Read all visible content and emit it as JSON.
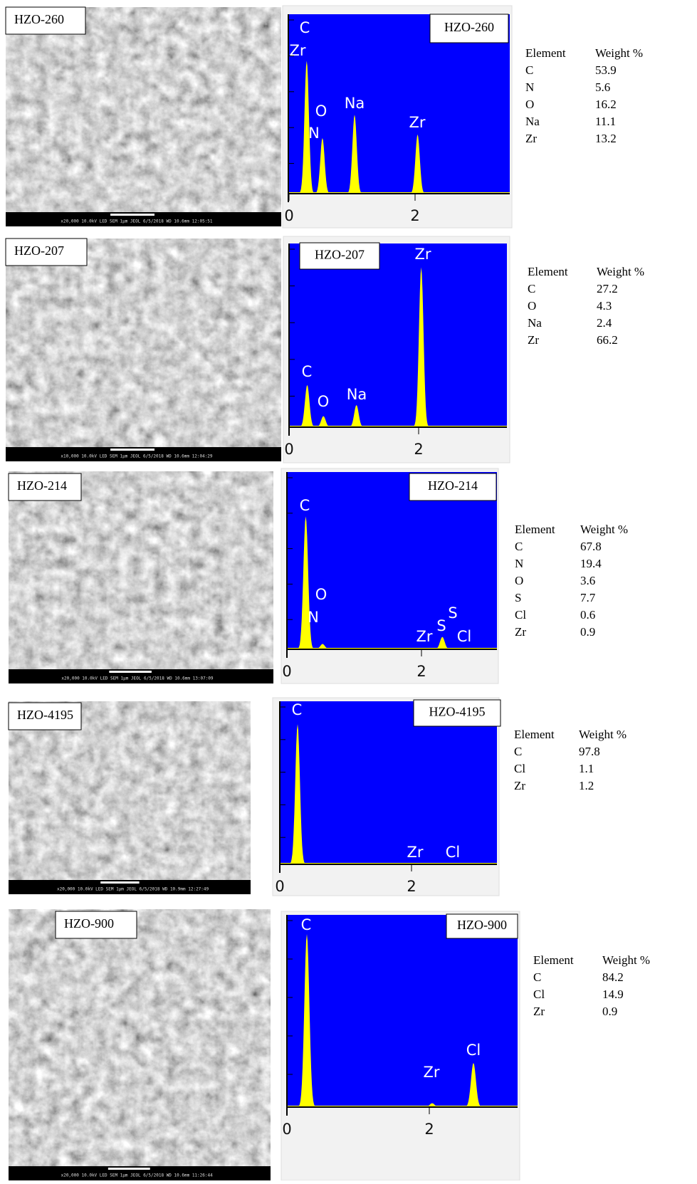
{
  "panels": [
    {
      "sem_label": "HZO-260",
      "sem_info": "x20,000   10.0kV LED   SEM   1μm  JEOL  6/5/2018  WD 10.6mm 12:05:51",
      "eds_label": "HZO-260",
      "spectrum": {
        "xticks": [
          0,
          2
        ],
        "peaks": [
          {
            "x": 0.28,
            "height": 74
          },
          {
            "x": 0.53,
            "height": 31
          },
          {
            "x": 1.04,
            "height": 44
          },
          {
            "x": 2.04,
            "height": 33
          }
        ],
        "peak_labels": [
          "C",
          "Zr",
          "O",
          "N",
          "Na",
          "Zr"
        ]
      },
      "table": {
        "header": [
          "Element",
          "Weight %"
        ],
        "rows": [
          [
            "C",
            53.9
          ],
          [
            "N",
            5.6
          ],
          [
            "O",
            16.2
          ],
          [
            "Na",
            11.1
          ],
          [
            "Zr",
            13.2
          ]
        ]
      }
    },
    {
      "sem_label": "HZO-207",
      "sem_info": "x10,000   10.0kV LED   SEM   1μm  JEOL  6/5/2018  WD 10.6mm 12:04:29",
      "eds_label": "HZO-207",
      "spectrum": {
        "xticks": [
          0,
          2
        ],
        "peaks": [
          {
            "x": 0.28,
            "height": 23
          },
          {
            "x": 0.53,
            "height": 6
          },
          {
            "x": 1.04,
            "height": 12
          },
          {
            "x": 2.04,
            "height": 87
          }
        ],
        "peak_labels": [
          "Zr",
          "C",
          "O",
          "Na"
        ]
      },
      "table": {
        "header": [
          "Element",
          "Weight %"
        ],
        "rows": [
          [
            "C",
            27.2
          ],
          [
            "O",
            4.3
          ],
          [
            "Na",
            2.4
          ],
          [
            "Zr",
            66.2
          ]
        ]
      }
    },
    {
      "sem_label": "HZO-214",
      "sem_info": "x20,000   10.0kV LED   SEM   1μm  JEOL  6/5/2018  WD 10.6mm 13:07:09",
      "eds_label": "HZO-214",
      "spectrum": {
        "xticks": [
          0,
          2
        ],
        "peaks": [
          {
            "x": 0.28,
            "height": 75
          },
          {
            "x": 0.53,
            "height": 3
          },
          {
            "x": 2.31,
            "height": 7
          }
        ],
        "peak_labels": [
          "C",
          "O",
          "N",
          "Zr",
          "S",
          "S",
          "Cl"
        ]
      },
      "table": {
        "header": [
          "Element",
          "Weight %"
        ],
        "rows": [
          [
            "C",
            67.8
          ],
          [
            "N",
            19.4
          ],
          [
            "O",
            3.6
          ],
          [
            "S",
            7.7
          ],
          [
            "Cl",
            0.6
          ],
          [
            "Zr",
            0.9
          ]
        ]
      }
    },
    {
      "sem_label": "HZO-4195",
      "sem_info": "x20,000   10.0kV LED   SEM   1μm  JEOL  6/5/2018  WD 10.9mm 12:27:49",
      "eds_label": "HZO-4195",
      "spectrum": {
        "xticks": [
          0,
          2
        ],
        "peaks": [
          {
            "x": 0.27,
            "height": 86
          }
        ],
        "peak_labels": [
          "C",
          "Zr",
          "Cl"
        ]
      },
      "table": {
        "header": [
          "Element",
          "Weight %"
        ],
        "rows": [
          [
            "C",
            97.8
          ],
          [
            "Cl",
            1.1
          ],
          [
            "Zr",
            1.2
          ]
        ]
      }
    },
    {
      "sem_label": "HZO-900",
      "sem_info": "x20,000   10.0kV LED   SEM   1μm  JEOL  6/5/2018  WD 10.6mm 11:26:44",
      "eds_label": "HZO-900",
      "spectrum": {
        "xticks": [
          0,
          2
        ],
        "peaks": [
          {
            "x": 0.28,
            "height": 90
          },
          {
            "x": 2.04,
            "height": 2
          },
          {
            "x": 2.62,
            "height": 23
          }
        ],
        "peak_labels": [
          "C",
          "Cl",
          "Zr"
        ]
      },
      "table": {
        "header": [
          "Element",
          "Weight %"
        ],
        "rows": [
          [
            "C",
            84.2
          ],
          [
            "Cl",
            14.9
          ],
          [
            "Zr",
            0.9
          ]
        ]
      }
    }
  ]
}
